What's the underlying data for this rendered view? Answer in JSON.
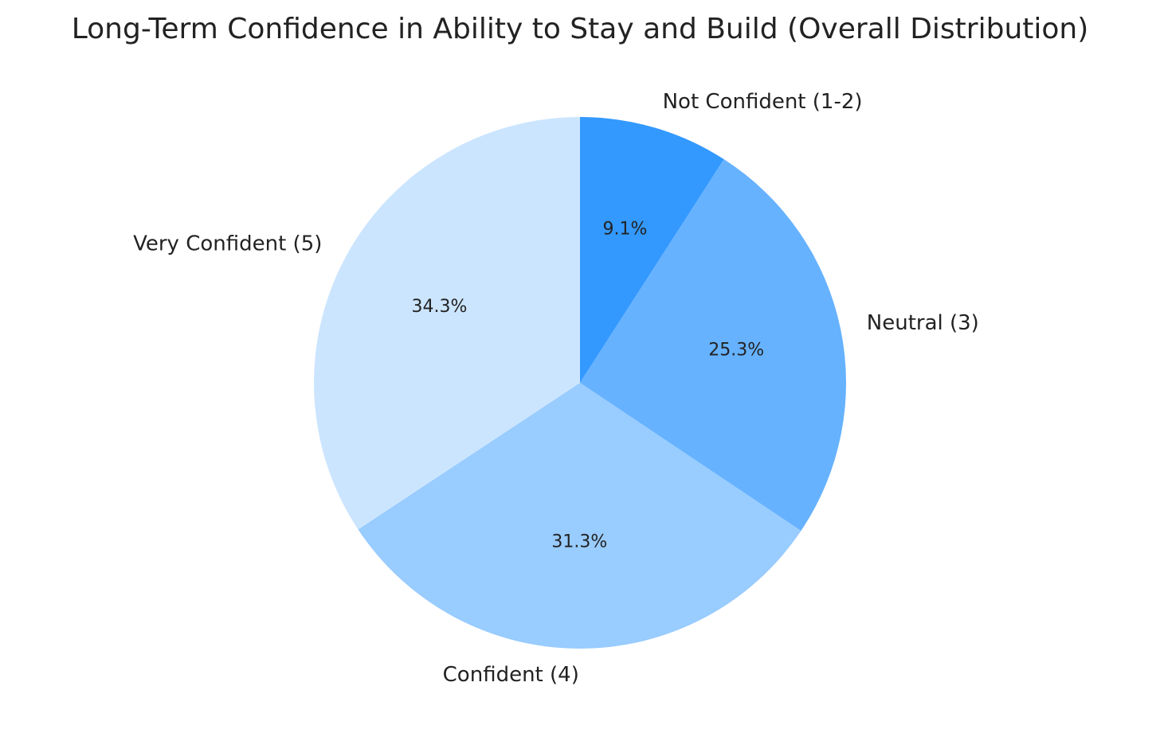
{
  "chart_data": {
    "type": "pie",
    "title": "Long-Term Confidence in Ability to Stay and Build (Overall Distribution)",
    "start": "top",
    "direction": "clockwise",
    "slices": [
      {
        "label": "Not Confident (1-2)",
        "value": 9.1,
        "pct_label": "9.1%",
        "color": "#3399ff"
      },
      {
        "label": "Neutral (3)",
        "value": 25.3,
        "pct_label": "25.3%",
        "color": "#66b2ff"
      },
      {
        "label": "Confident (4)",
        "value": 31.3,
        "pct_label": "31.3%",
        "color": "#99ccff"
      },
      {
        "label": "Very Confident (5)",
        "value": 34.3,
        "pct_label": "34.3%",
        "color": "#cce5ff"
      }
    ]
  }
}
